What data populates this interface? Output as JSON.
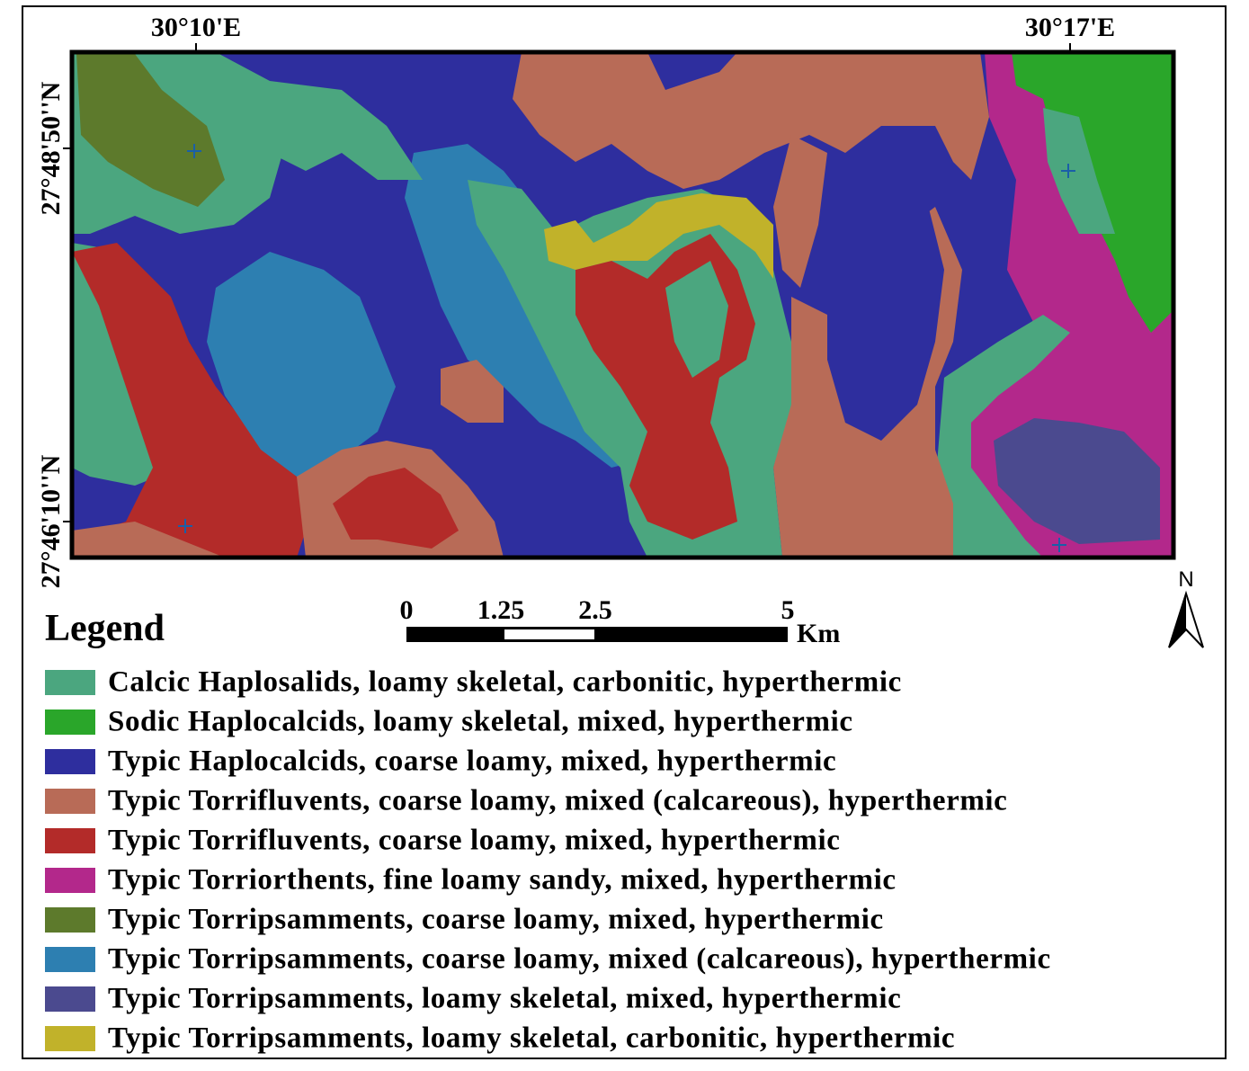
{
  "map": {
    "x_labels": [
      "30°10'E",
      "30°17'E"
    ],
    "y_labels": [
      "27°48'50''N",
      "27°46'10''N"
    ],
    "scale_bar": {
      "labels": [
        "0",
        "1.25",
        "2.5",
        "5"
      ],
      "unit": "Km"
    },
    "north": "N",
    "legend": {
      "title": "Legend",
      "items": [
        {
          "label": "Calcic Haplosalids, loamy skeletal, carbonitic, hyperthermic",
          "color": "#4ba67f"
        },
        {
          "label": "Sodic Haplocalcids, loamy skeletal, mixed, hyperthermic",
          "color": "#2aa62a"
        },
        {
          "label": "Typic Haplocalcids, coarse loamy, mixed, hyperthermic",
          "color": "#2e2e9e"
        },
        {
          "label": "Typic Torrifluvents, coarse loamy, mixed (calcareous), hyperthermic",
          "color": "#b86b57"
        },
        {
          "label": "Typic Torrifluvents, coarse loamy, mixed, hyperthermic",
          "color": "#b32b29"
        },
        {
          "label": "Typic Torriorthents, fine loamy sandy, mixed, hyperthermic",
          "color": "#b3288b"
        },
        {
          "label": "Typic Torripsamments, coarse loamy, mixed, hyperthermic",
          "color": "#5d7a2c"
        },
        {
          "label": "Typic Torripsamments, coarse loamy, mixed (calcareous), hyperthermic",
          "color": "#2d7fb1"
        },
        {
          "label": "Typic Torripsamments, loamy skeletal, mixed, hyperthermic",
          "color": "#4b4a8f"
        },
        {
          "label": "Typic Torripsamments, loamy skeletal, carbonitic, hyperthermic",
          "color": "#c1b22a"
        }
      ]
    }
  }
}
